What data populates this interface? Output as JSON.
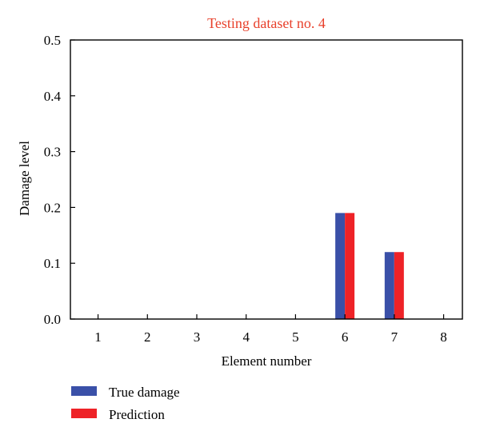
{
  "chart_data": {
    "type": "bar",
    "title": "Testing dataset no. 4",
    "xlabel": "Element number",
    "ylabel": "Damage level",
    "categories": [
      "1",
      "2",
      "3",
      "4",
      "5",
      "6",
      "7",
      "8"
    ],
    "ylim": [
      0,
      0.5
    ],
    "yticks": [
      "0.0",
      "0.1",
      "0.2",
      "0.3",
      "0.4",
      "0.5"
    ],
    "grid": false,
    "legend_position": "bottom-left",
    "series": [
      {
        "name": "True damage",
        "color": "#3a50a8",
        "values": [
          0,
          0,
          0,
          0,
          0,
          0.19,
          0.12,
          0
        ]
      },
      {
        "name": "Prediction",
        "color": "#ee2227",
        "values": [
          0,
          0,
          0,
          0,
          0,
          0.19,
          0.12,
          0
        ]
      }
    ],
    "title_color": "#e8402b"
  }
}
